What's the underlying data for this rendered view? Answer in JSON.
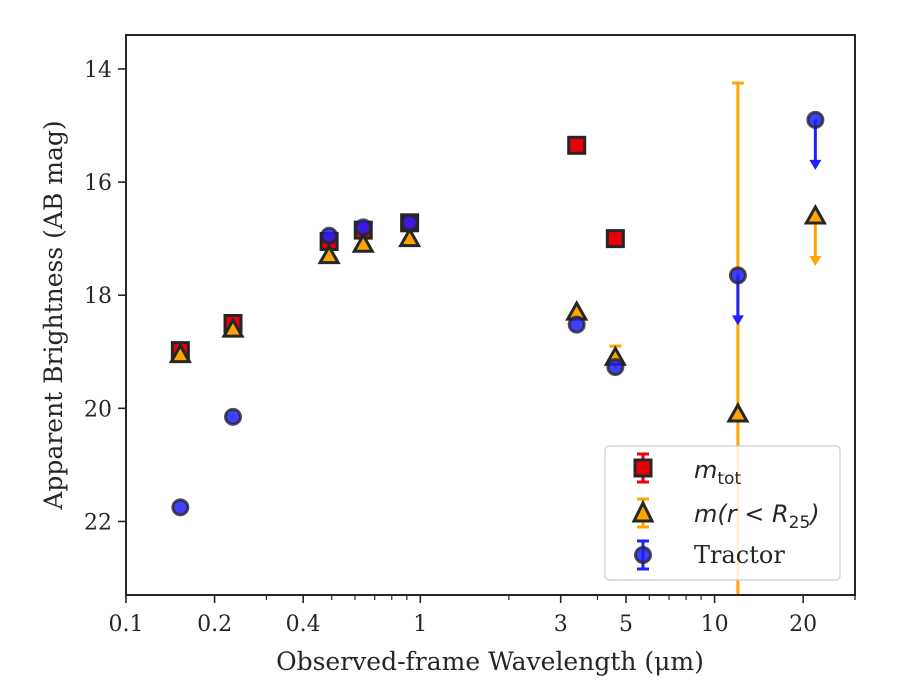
{
  "chart_data": {
    "type": "scatter",
    "title": "",
    "xlabel": "Observed-frame Wavelength (μm)",
    "ylabel": "Apparent Brightness (AB mag)",
    "xscale": "log",
    "xlim": [
      0.1,
      30
    ],
    "ylim": [
      23.3,
      13.4
    ],
    "y_inverted": true,
    "x_ticks": [
      {
        "value": 0.1,
        "label": "0.1"
      },
      {
        "value": 0.2,
        "label": "0.2"
      },
      {
        "value": 0.4,
        "label": "0.4"
      },
      {
        "value": 1,
        "label": "1"
      },
      {
        "value": 3,
        "label": "3"
      },
      {
        "value": 5,
        "label": "5"
      },
      {
        "value": 10,
        "label": "10"
      },
      {
        "value": 20,
        "label": "20"
      }
    ],
    "y_ticks": [
      {
        "value": 14,
        "label": "14"
      },
      {
        "value": 16,
        "label": "16"
      },
      {
        "value": 18,
        "label": "18"
      },
      {
        "value": 20,
        "label": "20"
      },
      {
        "value": 22,
        "label": "22"
      }
    ],
    "grid": false,
    "legend_position": "lower-right",
    "series": [
      {
        "name": "m_tot",
        "label_text": "m",
        "label_sub": "tot",
        "marker": "square",
        "color": "#e8000b",
        "edge_color": "#262626",
        "points": [
          {
            "x": 0.153,
            "y": 18.98
          },
          {
            "x": 0.231,
            "y": 18.5
          },
          {
            "x": 0.49,
            "y": 17.05
          },
          {
            "x": 0.64,
            "y": 16.85
          },
          {
            "x": 0.92,
            "y": 16.72
          },
          {
            "x": 3.4,
            "y": 15.35
          },
          {
            "x": 4.6,
            "y": 17.0
          }
        ]
      },
      {
        "name": "m(r<R25)",
        "label_text": "m(r < R",
        "label_sub": "25",
        "label_close": ")",
        "marker": "triangle",
        "color": "#ffa500",
        "edge_color": "#262626",
        "points": [
          {
            "x": 0.153,
            "y": 19.05
          },
          {
            "x": 0.231,
            "y": 18.6
          },
          {
            "x": 0.49,
            "y": 17.3
          },
          {
            "x": 0.64,
            "y": 17.1
          },
          {
            "x": 0.92,
            "y": 17.0
          },
          {
            "x": 3.4,
            "y": 18.3
          },
          {
            "x": 4.6,
            "y": 19.1,
            "yerr": 0.2
          },
          {
            "x": 12.0,
            "y": 20.1,
            "err_low": 14.25,
            "err_high": 23.3
          },
          {
            "x": 22.0,
            "y": 16.6,
            "upper_limit": true
          }
        ]
      },
      {
        "name": "Tractor",
        "marker": "circle",
        "color": "#1f1fff",
        "edge_color": "#262626",
        "points": [
          {
            "x": 0.153,
            "y": 21.75
          },
          {
            "x": 0.231,
            "y": 20.15
          },
          {
            "x": 0.49,
            "y": 16.95
          },
          {
            "x": 0.64,
            "y": 16.8
          },
          {
            "x": 0.92,
            "y": 16.72
          },
          {
            "x": 3.4,
            "y": 18.52
          },
          {
            "x": 4.6,
            "y": 19.27
          },
          {
            "x": 12.0,
            "y": 17.65,
            "upper_limit": true
          },
          {
            "x": 22.0,
            "y": 14.9,
            "upper_limit": true
          }
        ]
      }
    ]
  }
}
